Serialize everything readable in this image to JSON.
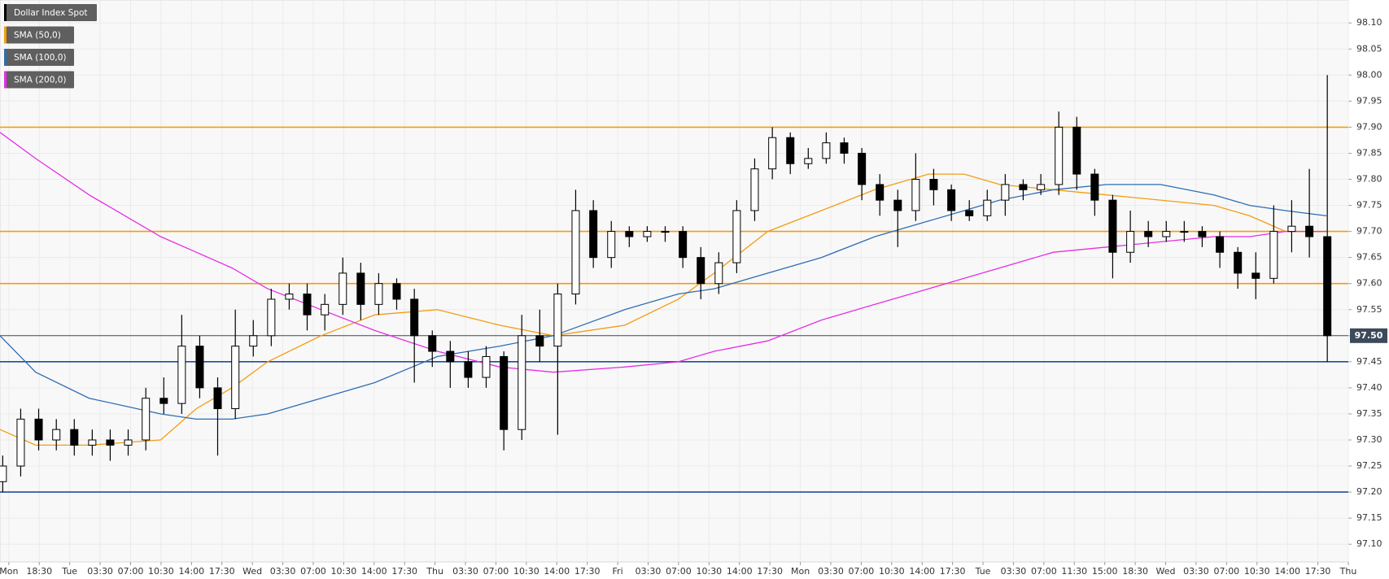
{
  "chart_data": {
    "type": "candlestick",
    "ylim": [
      97.066,
      98.144
    ],
    "xlim": [
      -0.29,
      44
    ],
    "yticks": [
      {
        "value": 97.1,
        "label": "97.10"
      },
      {
        "value": 97.15,
        "label": "97.15"
      },
      {
        "value": 97.2,
        "label": "97.20"
      },
      {
        "value": 97.25,
        "label": "97.25"
      },
      {
        "value": 97.3,
        "label": "97.30"
      },
      {
        "value": 97.35,
        "label": "97.35"
      },
      {
        "value": 97.4,
        "label": "97.40"
      },
      {
        "value": 97.45,
        "label": "97.45"
      },
      {
        "value": 97.5,
        "label": "97.50"
      },
      {
        "value": 97.55,
        "label": "97.55"
      },
      {
        "value": 97.6,
        "label": "97.60"
      },
      {
        "value": 97.65,
        "label": "97.65"
      },
      {
        "value": 97.7,
        "label": "97.70"
      },
      {
        "value": 97.75,
        "label": "97.75"
      },
      {
        "value": 97.8,
        "label": "97.80"
      },
      {
        "value": 97.85,
        "label": "97.85"
      },
      {
        "value": 97.9,
        "label": "97.90"
      },
      {
        "value": 97.95,
        "label": "97.95"
      },
      {
        "value": 98.0,
        "label": "98.00"
      },
      {
        "value": 98.05,
        "label": "98.05"
      },
      {
        "value": 98.1,
        "label": "98.10"
      }
    ],
    "xticks": [
      {
        "value": 0,
        "label": "Mon"
      },
      {
        "value": 1,
        "label": "18:30"
      },
      {
        "value": 2,
        "label": "Tue"
      },
      {
        "value": 3,
        "label": "03:30"
      },
      {
        "value": 4,
        "label": "07:00"
      },
      {
        "value": 5,
        "label": "10:30"
      },
      {
        "value": 6,
        "label": "14:00"
      },
      {
        "value": 7,
        "label": "17:30"
      },
      {
        "value": 8,
        "label": "Wed"
      },
      {
        "value": 9,
        "label": "03:30"
      },
      {
        "value": 10,
        "label": "07:00"
      },
      {
        "value": 11,
        "label": "10:30"
      },
      {
        "value": 12,
        "label": "14:00"
      },
      {
        "value": 13,
        "label": "17:30"
      },
      {
        "value": 14,
        "label": "Thu"
      },
      {
        "value": 15,
        "label": "03:30"
      },
      {
        "value": 16,
        "label": "07:00"
      },
      {
        "value": 17,
        "label": "10:30"
      },
      {
        "value": 18,
        "label": "14:00"
      },
      {
        "value": 19,
        "label": "17:30"
      },
      {
        "value": 20,
        "label": "Fri"
      },
      {
        "value": 21,
        "label": "03:30"
      },
      {
        "value": 22,
        "label": "07:00"
      },
      {
        "value": 23,
        "label": "10:30"
      },
      {
        "value": 24,
        "label": "14:00"
      },
      {
        "value": 25,
        "label": "17:30"
      },
      {
        "value": 26,
        "label": "Mon"
      },
      {
        "value": 27,
        "label": "03:30"
      },
      {
        "value": 28,
        "label": "07:00"
      },
      {
        "value": 29,
        "label": "10:30"
      },
      {
        "value": 30,
        "label": "14:00"
      },
      {
        "value": 31,
        "label": "17:30"
      },
      {
        "value": 32,
        "label": "Tue"
      },
      {
        "value": 33,
        "label": "03:30"
      },
      {
        "value": 34,
        "label": "07:00"
      },
      {
        "value": 35,
        "label": "11:30"
      },
      {
        "value": 36,
        "label": "15:00"
      },
      {
        "value": 37,
        "label": "18:30"
      },
      {
        "value": 38,
        "label": "Wed"
      },
      {
        "value": 39,
        "label": "03:30"
      },
      {
        "value": 40,
        "label": "07:00"
      },
      {
        "value": 41,
        "label": "10:30"
      },
      {
        "value": 42,
        "label": "14:00"
      },
      {
        "value": 43,
        "label": "17:30"
      },
      {
        "value": 44,
        "label": "Thu"
      }
    ],
    "grid": true,
    "candle_name": "Dollar Index Spot",
    "candle_color": "#000000",
    "candle_x": [
      -0.2,
      0.39,
      0.98,
      1.56,
      2.15,
      2.74,
      3.33,
      3.92,
      4.5,
      5.09,
      5.68,
      6.27,
      6.86,
      7.44,
      8.03,
      8.62,
      9.21,
      9.8,
      10.38,
      10.97,
      11.56,
      12.15,
      12.74,
      13.32,
      13.91,
      14.5,
      15.09,
      15.68,
      16.26,
      16.85,
      17.44,
      18.03,
      18.62,
      19.2,
      19.79,
      20.38,
      20.97,
      21.56,
      22.14,
      22.73,
      23.32,
      23.91,
      24.5,
      25.08,
      25.67,
      26.26,
      26.85,
      27.44,
      28.02,
      28.61,
      29.2,
      29.79,
      30.38,
      30.96,
      31.55,
      32.14,
      32.73,
      33.32,
      33.9,
      34.49,
      35.08,
      35.67,
      36.26,
      36.84,
      37.43,
      38.02,
      38.61,
      39.2,
      39.78,
      40.37,
      40.96,
      41.55,
      42.14,
      42.72,
      43.31
    ],
    "candles": [
      [
        97.22,
        97.27,
        97.2,
        97.25
      ],
      [
        97.25,
        97.36,
        97.23,
        97.34
      ],
      [
        97.34,
        97.36,
        97.28,
        97.3
      ],
      [
        97.3,
        97.34,
        97.28,
        97.32
      ],
      [
        97.32,
        97.34,
        97.27,
        97.29
      ],
      [
        97.29,
        97.32,
        97.27,
        97.3
      ],
      [
        97.3,
        97.32,
        97.26,
        97.29
      ],
      [
        97.29,
        97.32,
        97.27,
        97.3
      ],
      [
        97.3,
        97.4,
        97.28,
        97.38
      ],
      [
        97.38,
        97.42,
        97.35,
        97.37
      ],
      [
        97.37,
        97.54,
        97.35,
        97.48
      ],
      [
        97.48,
        97.5,
        97.38,
        97.4
      ],
      [
        97.4,
        97.42,
        97.27,
        97.36
      ],
      [
        97.36,
        97.55,
        97.34,
        97.48
      ],
      [
        97.48,
        97.53,
        97.46,
        97.5
      ],
      [
        97.5,
        97.59,
        97.48,
        97.57
      ],
      [
        97.57,
        97.6,
        97.55,
        97.58
      ],
      [
        97.58,
        97.6,
        97.51,
        97.54
      ],
      [
        97.54,
        97.58,
        97.51,
        97.56
      ],
      [
        97.56,
        97.65,
        97.54,
        97.62
      ],
      [
        97.62,
        97.64,
        97.53,
        97.56
      ],
      [
        97.56,
        97.62,
        97.54,
        97.6
      ],
      [
        97.6,
        97.61,
        97.55,
        97.57
      ],
      [
        97.57,
        97.59,
        97.41,
        97.5
      ],
      [
        97.5,
        97.51,
        97.44,
        97.47
      ],
      [
        97.47,
        97.49,
        97.4,
        97.45
      ],
      [
        97.45,
        97.47,
        97.4,
        97.42
      ],
      [
        97.42,
        97.48,
        97.4,
        97.46
      ],
      [
        97.46,
        97.47,
        97.28,
        97.32
      ],
      [
        97.32,
        97.54,
        97.3,
        97.5
      ],
      [
        97.5,
        97.55,
        97.45,
        97.48
      ],
      [
        97.48,
        97.6,
        97.31,
        97.58
      ],
      [
        97.58,
        97.78,
        97.56,
        97.74
      ],
      [
        97.74,
        97.76,
        97.63,
        97.65
      ],
      [
        97.65,
        97.72,
        97.63,
        97.7
      ],
      [
        97.7,
        97.71,
        97.67,
        97.69
      ],
      [
        97.69,
        97.71,
        97.68,
        97.7
      ],
      [
        97.7,
        97.71,
        97.68,
        97.7
      ],
      [
        97.7,
        97.71,
        97.63,
        97.65
      ],
      [
        97.65,
        97.67,
        97.57,
        97.6
      ],
      [
        97.6,
        97.66,
        97.58,
        97.64
      ],
      [
        97.64,
        97.76,
        97.62,
        97.74
      ],
      [
        97.74,
        97.84,
        97.72,
        97.82
      ],
      [
        97.82,
        97.9,
        97.8,
        97.88
      ],
      [
        97.88,
        97.89,
        97.81,
        97.83
      ],
      [
        97.83,
        97.86,
        97.82,
        97.84
      ],
      [
        97.84,
        97.89,
        97.83,
        97.87
      ],
      [
        97.87,
        97.88,
        97.83,
        97.85
      ],
      [
        97.85,
        97.86,
        97.76,
        97.79
      ],
      [
        97.79,
        97.81,
        97.73,
        97.76
      ],
      [
        97.76,
        97.78,
        97.67,
        97.74
      ],
      [
        97.74,
        97.85,
        97.72,
        97.8
      ],
      [
        97.8,
        97.82,
        97.75,
        97.78
      ],
      [
        97.78,
        97.79,
        97.72,
        97.74
      ],
      [
        97.74,
        97.76,
        97.72,
        97.73
      ],
      [
        97.73,
        97.78,
        97.72,
        97.76
      ],
      [
        97.76,
        97.81,
        97.73,
        97.79
      ],
      [
        97.79,
        97.8,
        97.76,
        97.78
      ],
      [
        97.78,
        97.81,
        97.77,
        97.79
      ],
      [
        97.79,
        97.93,
        97.77,
        97.9
      ],
      [
        97.9,
        97.92,
        97.78,
        97.81
      ],
      [
        97.81,
        97.82,
        97.73,
        97.76
      ],
      [
        97.76,
        97.77,
        97.61,
        97.66
      ],
      [
        97.66,
        97.74,
        97.64,
        97.7
      ],
      [
        97.7,
        97.72,
        97.67,
        97.69
      ],
      [
        97.69,
        97.72,
        97.68,
        97.7
      ],
      [
        97.7,
        97.72,
        97.68,
        97.7
      ],
      [
        97.7,
        97.71,
        97.67,
        97.69
      ],
      [
        97.69,
        97.7,
        97.63,
        97.66
      ],
      [
        97.66,
        97.67,
        97.59,
        97.62
      ],
      [
        97.62,
        97.66,
        97.57,
        97.61
      ],
      [
        97.61,
        97.75,
        97.6,
        97.7
      ],
      [
        97.7,
        97.76,
        97.66,
        97.71
      ],
      [
        97.71,
        97.82,
        97.65,
        97.69
      ],
      [
        97.69,
        98.0,
        97.45,
        97.5
      ]
    ],
    "x": [
      -0.29,
      0.88,
      2.64,
      4.99,
      6.16,
      7.33,
      8.5,
      10.26,
      12.02,
      14.08,
      16.13,
      17.89,
      20.23,
      21.99,
      23.17,
      24.93,
      26.69,
      28.45,
      30.21,
      31.38,
      32.55,
      34.31,
      36.07,
      37.83,
      39.59,
      40.76,
      41.94,
      43.28
    ],
    "series": [
      {
        "name": "SMA (50,0)",
        "color": "#f39c12",
        "values": [
          97.32,
          97.29,
          97.29,
          97.3,
          97.36,
          97.4,
          97.45,
          97.5,
          97.54,
          97.55,
          97.52,
          97.5,
          97.52,
          97.57,
          97.62,
          97.7,
          97.74,
          97.78,
          97.81,
          97.81,
          97.79,
          97.78,
          97.77,
          97.76,
          97.75,
          97.73,
          97.7,
          97.7
        ]
      },
      {
        "name": "SMA (100,0)",
        "color": "#2e6db4",
        "values": [
          97.5,
          97.43,
          97.38,
          97.35,
          97.34,
          97.34,
          97.35,
          97.38,
          97.41,
          97.46,
          97.48,
          97.5,
          97.55,
          97.58,
          97.59,
          97.62,
          97.65,
          97.69,
          97.72,
          97.74,
          97.76,
          97.78,
          97.79,
          97.79,
          97.77,
          97.75,
          97.74,
          97.73
        ]
      },
      {
        "name": "SMA (200,0)",
        "color": "#e62ee6",
        "values": [
          97.89,
          97.84,
          97.77,
          97.69,
          97.66,
          97.63,
          97.59,
          97.55,
          97.51,
          97.47,
          97.44,
          97.43,
          97.44,
          97.45,
          97.47,
          97.49,
          97.53,
          97.56,
          97.59,
          97.61,
          97.63,
          97.66,
          97.67,
          97.68,
          97.69,
          97.69,
          97.7,
          97.7
        ]
      }
    ],
    "levels": [
      {
        "value": 97.9,
        "color": "#f39c12"
      },
      {
        "value": 97.7,
        "color": "#f39c12"
      },
      {
        "value": 97.6,
        "color": "#f39c12"
      },
      {
        "value": 97.45,
        "color": "#1f4e9a"
      },
      {
        "value": 97.2,
        "color": "#1f4e9a"
      }
    ],
    "last_price": {
      "value": 97.5,
      "label": "97.50",
      "color": "#3d4a5a"
    }
  }
}
